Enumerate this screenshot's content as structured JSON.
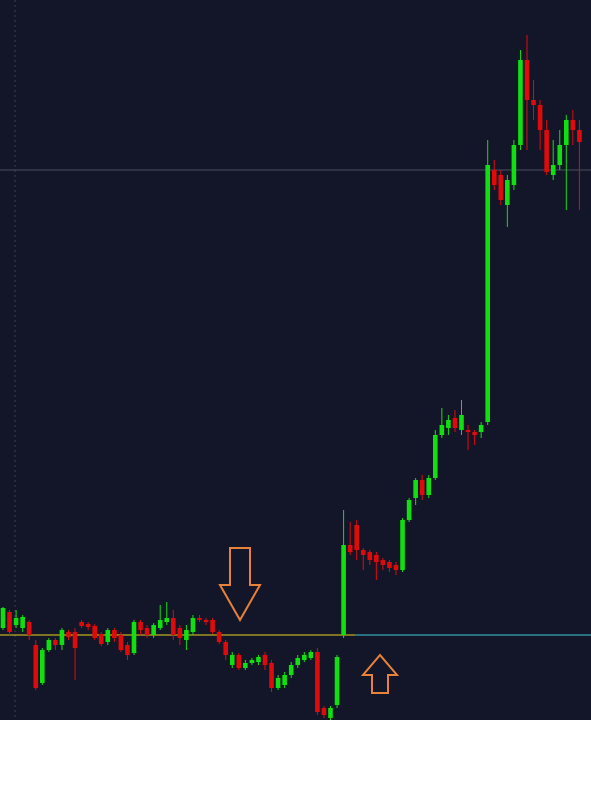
{
  "chart_data": {
    "type": "candlestick",
    "up_color": "#10e010",
    "down_color": "#e00a0a",
    "ylim": [
      0,
      720
    ],
    "levels": [
      {
        "value": 550,
        "color": "#4a4e5c"
      },
      {
        "value": 85,
        "color": "#e8d21c",
        "right_color": "#3cc8d8"
      }
    ],
    "open": [
      92,
      108,
      95,
      92,
      98,
      75,
      37,
      70,
      80,
      75,
      88,
      88,
      98,
      96,
      94,
      86,
      78,
      90,
      85,
      75,
      67,
      98,
      92,
      85,
      92,
      98,
      102,
      92,
      80,
      88,
      102,
      100,
      100,
      88,
      78,
      55,
      65,
      52,
      57,
      58,
      65,
      57,
      32,
      35,
      45,
      55,
      60,
      62,
      68,
      12,
      2,
      15,
      85,
      175,
      195,
      170,
      168,
      165,
      160,
      158,
      155,
      150,
      200,
      222,
      240,
      225,
      242,
      285,
      292,
      302,
      290,
      290,
      288,
      288,
      298,
      550,
      545,
      515,
      535,
      575,
      660,
      620,
      615,
      590,
      545,
      555,
      575,
      600,
      590
    ],
    "high": [
      113,
      110,
      110,
      105,
      100,
      80,
      72,
      82,
      82,
      92,
      90,
      92,
      100,
      98,
      96,
      88,
      92,
      92,
      88,
      78,
      100,
      100,
      95,
      97,
      115,
      118,
      110,
      95,
      95,
      105,
      105,
      102,
      102,
      90,
      80,
      68,
      67,
      60,
      62,
      65,
      68,
      60,
      45,
      48,
      58,
      65,
      68,
      70,
      72,
      14,
      14,
      65,
      210,
      198,
      200,
      172,
      170,
      168,
      162,
      160,
      158,
      202,
      222,
      242,
      245,
      245,
      290,
      312,
      305,
      310,
      320,
      295,
      290,
      298,
      580,
      560,
      550,
      545,
      580,
      670,
      685,
      640,
      620,
      600,
      580,
      590,
      605,
      610,
      600
    ],
    "low": [
      90,
      85,
      92,
      88,
      80,
      30,
      35,
      68,
      70,
      70,
      80,
      40,
      92,
      90,
      80,
      74,
      75,
      78,
      68,
      60,
      65,
      85,
      82,
      82,
      90,
      95,
      80,
      75,
      70,
      85,
      98,
      95,
      86,
      76,
      60,
      52,
      50,
      50,
      55,
      55,
      50,
      28,
      30,
      32,
      42,
      52,
      58,
      60,
      5,
      2,
      0,
      12,
      82,
      165,
      160,
      150,
      155,
      140,
      150,
      148,
      145,
      148,
      198,
      215,
      220,
      222,
      240,
      282,
      285,
      288,
      285,
      270,
      275,
      282,
      295,
      530,
      515,
      493,
      530,
      570,
      570,
      600,
      570,
      545,
      540,
      550,
      510,
      575,
      510
    ],
    "close": [
      112,
      88,
      102,
      103,
      85,
      32,
      70,
      80,
      75,
      90,
      83,
      72,
      94,
      93,
      82,
      76,
      90,
      82,
      70,
      65,
      98,
      90,
      85,
      95,
      100,
      102,
      85,
      82,
      90,
      102,
      100,
      98,
      88,
      78,
      65,
      65,
      52,
      57,
      60,
      63,
      55,
      32,
      42,
      45,
      55,
      62,
      65,
      68,
      8,
      5,
      12,
      63,
      175,
      168,
      170,
      165,
      160,
      158,
      155,
      152,
      150,
      200,
      220,
      240,
      225,
      242,
      285,
      295,
      300,
      292,
      305,
      288,
      285,
      295,
      555,
      535,
      520,
      540,
      575,
      660,
      620,
      615,
      590,
      548,
      555,
      575,
      600,
      590,
      578
    ]
  }
}
